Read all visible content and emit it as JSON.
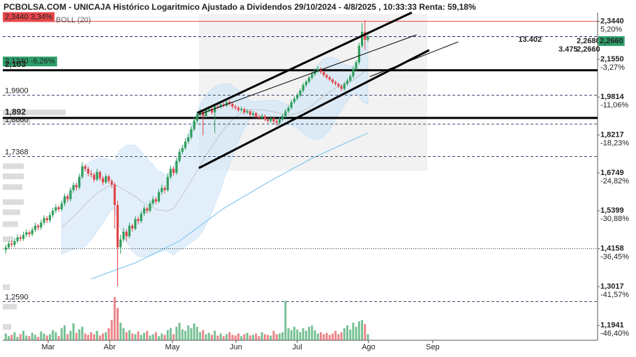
{
  "chart_data": {
    "type": "candlestick",
    "title": "PCBOLSA.COM - UNICAJA Histórico Logaritmico Ajustado a Dividendos 29/10/2024 - 4/8/2025 , 10:33:33 Renta: 59,18%",
    "indicator_label": "BOLL (20)",
    "log_scale": true,
    "ylim": [
      1.1555,
      2.39
    ],
    "xlim": [
      0,
      202
    ],
    "yticks": [
      {
        "value": 2.344,
        "label": "2,3440"
      },
      {
        "value": 2.155,
        "label": "2,1550"
      },
      {
        "value": 1.9814,
        "label": "1,9814"
      },
      {
        "value": 1.8217,
        "label": "1,8217"
      },
      {
        "value": 1.6749,
        "label": "1,6749"
      },
      {
        "value": 1.5399,
        "label": "1,5399"
      },
      {
        "value": 1.4158,
        "label": "1,4158"
      },
      {
        "value": 1.3017,
        "label": "1,3017"
      },
      {
        "value": 1.1941,
        "label": "1,1941"
      }
    ],
    "y_pct_labels": [
      "5,20%",
      "-3,27%",
      "-11,06%",
      "-18,23%",
      "-24,82%",
      "-30,88%",
      "-36,45%",
      "-41,57%",
      "-46,40%"
    ],
    "xticks": [
      {
        "value": 15.4,
        "label": "Mar"
      },
      {
        "value": 36.3,
        "label": "Abr"
      },
      {
        "value": 57.6,
        "label": "May"
      },
      {
        "value": 79.2,
        "label": "Jun"
      },
      {
        "value": 100,
        "label": "Jul"
      },
      {
        "value": 124.2,
        "label": "Ago"
      },
      {
        "value": 146,
        "label": "Sep"
      }
    ],
    "up_color": "#2e9e5b",
    "down_color": "#e0454a",
    "candles": [
      [
        1.412,
        1.428,
        1.4,
        1.42
      ],
      [
        1.42,
        1.44,
        1.414,
        1.432
      ],
      [
        1.432,
        1.442,
        1.42,
        1.428
      ],
      [
        1.428,
        1.45,
        1.42,
        1.44
      ],
      [
        1.44,
        1.462,
        1.432,
        1.452
      ],
      [
        1.452,
        1.46,
        1.438,
        1.447
      ],
      [
        1.447,
        1.47,
        1.44,
        1.46
      ],
      [
        1.46,
        1.478,
        1.452,
        1.468
      ],
      [
        1.468,
        1.474,
        1.452,
        1.462
      ],
      [
        1.462,
        1.486,
        1.455,
        1.476
      ],
      [
        1.476,
        1.5,
        1.468,
        1.49
      ],
      [
        1.49,
        1.496,
        1.474,
        1.484
      ],
      [
        1.484,
        1.51,
        1.476,
        1.5
      ],
      [
        1.5,
        1.525,
        1.492,
        1.515
      ],
      [
        1.515,
        1.522,
        1.498,
        1.508
      ],
      [
        1.508,
        1.535,
        1.5,
        1.525
      ],
      [
        1.525,
        1.55,
        1.516,
        1.54
      ],
      [
        1.54,
        1.562,
        1.532,
        1.552
      ],
      [
        1.552,
        1.558,
        1.536,
        1.545
      ],
      [
        1.545,
        1.575,
        1.538,
        1.565
      ],
      [
        1.565,
        1.6,
        1.556,
        1.59
      ],
      [
        1.59,
        1.598,
        1.57,
        1.58
      ],
      [
        1.58,
        1.622,
        1.572,
        1.612
      ],
      [
        1.612,
        1.64,
        1.602,
        1.63
      ],
      [
        1.63,
        1.638,
        1.61,
        1.622
      ],
      [
        1.622,
        1.672,
        1.615,
        1.66
      ],
      [
        1.66,
        1.715,
        1.652,
        1.7
      ],
      [
        1.7,
        1.708,
        1.68,
        1.69
      ],
      [
        1.69,
        1.698,
        1.662,
        1.672
      ],
      [
        1.672,
        1.685,
        1.658,
        1.668
      ],
      [
        1.668,
        1.676,
        1.64,
        1.65
      ],
      [
        1.65,
        1.69,
        1.644,
        1.678
      ],
      [
        1.678,
        1.684,
        1.646,
        1.655
      ],
      [
        1.655,
        1.664,
        1.63,
        1.64
      ],
      [
        1.64,
        1.672,
        1.634,
        1.662
      ],
      [
        1.662,
        1.668,
        1.636,
        1.645
      ],
      [
        1.645,
        1.652,
        1.62,
        1.632
      ],
      [
        1.632,
        1.64,
        1.48,
        1.56
      ],
      [
        1.56,
        1.575,
        1.302,
        1.42
      ],
      [
        1.42,
        1.46,
        1.4,
        1.445
      ],
      [
        1.445,
        1.482,
        1.436,
        1.47
      ],
      [
        1.47,
        1.478,
        1.44,
        1.455
      ],
      [
        1.455,
        1.5,
        1.448,
        1.49
      ],
      [
        1.49,
        1.496,
        1.47,
        1.48
      ],
      [
        1.48,
        1.522,
        1.474,
        1.512
      ],
      [
        1.512,
        1.52,
        1.494,
        1.505
      ],
      [
        1.505,
        1.54,
        1.498,
        1.53
      ],
      [
        1.53,
        1.558,
        1.522,
        1.548
      ],
      [
        1.548,
        1.554,
        1.53,
        1.54
      ],
      [
        1.54,
        1.575,
        1.534,
        1.565
      ],
      [
        1.565,
        1.59,
        1.556,
        1.58
      ],
      [
        1.58,
        1.588,
        1.562,
        1.572
      ],
      [
        1.572,
        1.615,
        1.566,
        1.605
      ],
      [
        1.605,
        1.632,
        1.596,
        1.62
      ],
      [
        1.62,
        1.628,
        1.6,
        1.612
      ],
      [
        1.612,
        1.672,
        1.606,
        1.66
      ],
      [
        1.66,
        1.702,
        1.652,
        1.69
      ],
      [
        1.69,
        1.698,
        1.664,
        1.675
      ],
      [
        1.675,
        1.732,
        1.668,
        1.72
      ],
      [
        1.72,
        1.768,
        1.712,
        1.755
      ],
      [
        1.755,
        1.782,
        1.746,
        1.77
      ],
      [
        1.77,
        1.808,
        1.762,
        1.795
      ],
      [
        1.795,
        1.825,
        1.786,
        1.812
      ],
      [
        1.812,
        1.858,
        1.804,
        1.845
      ],
      [
        1.845,
        1.894,
        1.836,
        1.88
      ],
      [
        1.88,
        1.918,
        1.87,
        1.905
      ],
      [
        1.905,
        1.93,
        1.896,
        1.918
      ],
      [
        1.918,
        1.926,
        1.82,
        1.9
      ],
      [
        1.9,
        1.936,
        1.892,
        1.925
      ],
      [
        1.925,
        1.942,
        1.916,
        1.93
      ],
      [
        1.93,
        1.938,
        1.906,
        1.915
      ],
      [
        1.915,
        1.952,
        1.83,
        1.942
      ],
      [
        1.942,
        1.95,
        1.928,
        1.938
      ],
      [
        1.938,
        1.962,
        1.93,
        1.95
      ],
      [
        1.95,
        1.958,
        1.936,
        1.945
      ],
      [
        1.945,
        1.972,
        1.938,
        1.96
      ],
      [
        1.96,
        1.968,
        1.942,
        1.952
      ],
      [
        1.952,
        1.96,
        1.93,
        1.94
      ],
      [
        1.94,
        1.948,
        1.926,
        1.935
      ],
      [
        1.935,
        1.942,
        1.916,
        1.925
      ],
      [
        1.925,
        1.94,
        1.918,
        1.93
      ],
      [
        1.93,
        1.936,
        1.906,
        1.915
      ],
      [
        1.915,
        1.93,
        1.908,
        1.92
      ],
      [
        1.92,
        1.926,
        1.896,
        1.905
      ],
      [
        1.905,
        1.922,
        1.898,
        1.912
      ],
      [
        1.912,
        1.918,
        1.89,
        1.898
      ],
      [
        1.898,
        1.906,
        1.884,
        1.892
      ],
      [
        1.892,
        1.91,
        1.885,
        1.9
      ],
      [
        1.9,
        1.906,
        1.878,
        1.886
      ],
      [
        1.886,
        1.894,
        1.87,
        1.88
      ],
      [
        1.88,
        1.9,
        1.872,
        1.89
      ],
      [
        1.89,
        1.896,
        1.868,
        1.878
      ],
      [
        1.878,
        1.886,
        1.86,
        1.872
      ],
      [
        1.872,
        1.895,
        1.864,
        1.885
      ],
      [
        1.885,
        1.91,
        1.878,
        1.9
      ],
      [
        1.9,
        1.93,
        1.892,
        1.92
      ],
      [
        1.92,
        1.945,
        1.912,
        1.935
      ],
      [
        1.935,
        1.97,
        1.928,
        1.96
      ],
      [
        1.96,
        1.985,
        1.952,
        1.975
      ],
      [
        1.975,
        2.0,
        1.966,
        1.99
      ],
      [
        1.99,
        2.02,
        1.982,
        2.01
      ],
      [
        2.01,
        2.045,
        2.002,
        2.035
      ],
      [
        2.035,
        2.06,
        2.026,
        2.05
      ],
      [
        2.05,
        2.078,
        2.042,
        2.068
      ],
      [
        2.068,
        2.095,
        2.06,
        2.085
      ],
      [
        2.085,
        2.11,
        2.076,
        2.1
      ],
      [
        2.1,
        2.122,
        2.09,
        2.11
      ],
      [
        2.11,
        2.116,
        2.086,
        2.095
      ],
      [
        2.095,
        2.102,
        2.072,
        2.08
      ],
      [
        2.08,
        2.088,
        2.062,
        2.07
      ],
      [
        2.07,
        2.078,
        2.052,
        2.06
      ],
      [
        2.06,
        2.066,
        2.04,
        2.048
      ],
      [
        2.048,
        2.056,
        2.032,
        2.04
      ],
      [
        2.04,
        2.046,
        2.022,
        2.03
      ],
      [
        2.03,
        2.038,
        2.008,
        2.018
      ],
      [
        2.018,
        2.05,
        2.01,
        2.04
      ],
      [
        2.04,
        2.065,
        2.032,
        2.055
      ],
      [
        2.055,
        2.085,
        2.046,
        2.075
      ],
      [
        2.075,
        2.12,
        2.066,
        2.11
      ],
      [
        2.11,
        2.15,
        2.1,
        2.14
      ],
      [
        2.14,
        2.235,
        2.13,
        2.22
      ],
      [
        2.22,
        2.335,
        2.21,
        2.29
      ],
      [
        2.29,
        2.35,
        2.2,
        2.25
      ],
      [
        2.25,
        2.29,
        2.24,
        2.266
      ]
    ],
    "volume": [
      10,
      6,
      8,
      12,
      5,
      9,
      14,
      7,
      6,
      11,
      8,
      5,
      13,
      10,
      7,
      9,
      15,
      12,
      6,
      18,
      22,
      9,
      14,
      25,
      11,
      16,
      20,
      10,
      8,
      12,
      9,
      14,
      7,
      10,
      12,
      18,
      30,
      64,
      48,
      26,
      18,
      12,
      15,
      10,
      9,
      13,
      8,
      11,
      14,
      7,
      9,
      12,
      6,
      10,
      8,
      15,
      18,
      9,
      20,
      26,
      16,
      14,
      22,
      18,
      25,
      20,
      12,
      15,
      9,
      11,
      8,
      14,
      7,
      10,
      6,
      9,
      12,
      8,
      7,
      10,
      6,
      9,
      11,
      7,
      8,
      10,
      6,
      12,
      9,
      8,
      7,
      14,
      9,
      10,
      12,
      58,
      18,
      15,
      20,
      16,
      12,
      18,
      14,
      20,
      22,
      15,
      10,
      12,
      9,
      11,
      8,
      10,
      14,
      9,
      12,
      18,
      22,
      16,
      26,
      20,
      28,
      30,
      24,
      9
    ],
    "ma_long": {
      "color": "#8ccbf0",
      "x": [
        30,
        45,
        60,
        75,
        90,
        105,
        124
      ],
      "values": [
        1.324,
        1.372,
        1.44,
        1.548,
        1.64,
        1.73,
        1.83
      ]
    },
    "volume_profile": {
      "color": "#dcdcdc",
      "prices": [
        1.915,
        1.882,
        1.7,
        1.662,
        1.623,
        1.57,
        1.535,
        1.495,
        1.446,
        1.3,
        1.245,
        1.19
      ],
      "sizes": [
        90,
        40,
        30,
        30,
        28,
        30,
        25,
        22,
        15,
        10,
        20,
        12
      ]
    },
    "levels": [
      {
        "value": 2.344,
        "label": "2,3440 3,34%",
        "style": "solid",
        "color": "#e8474b",
        "box": true
      },
      {
        "value": 2.266,
        "style": "dashed",
        "color": "#1f2a6b"
      },
      {
        "value": 2.124,
        "label": "2,1240 -6,26%",
        "style": "none",
        "color": "#2e9e6b",
        "box": true
      },
      {
        "value": 2.103,
        "label": "2,103",
        "style": "thick",
        "color": "#000000"
      },
      {
        "value": 1.99,
        "label": "1,9900",
        "style": "dashed",
        "color": "#3a4a6b"
      },
      {
        "value": 1.892,
        "label": "1,892",
        "style": "thick",
        "color": "#000000"
      },
      {
        "value": 1.866,
        "label": "1,8660",
        "style": "dashed",
        "color": "#3a4a6b"
      },
      {
        "value": 1.7368,
        "label": "1,7368",
        "style": "dashed",
        "color": "#3a4a6b"
      },
      {
        "value": 1.4158,
        "style": "dotted",
        "color": "#222222"
      },
      {
        "value": 1.259,
        "label": "1,2590",
        "style": "dashed",
        "color": "#3a4a6b"
      }
    ],
    "trendlines": [
      {
        "x": [
          66.1,
          138.9
        ],
        "values": [
          1.913,
          2.39
        ],
        "width": 3
      },
      {
        "x": [
          66.6,
          144.8
        ],
        "values": [
          1.693,
          2.199
        ],
        "width": 3
      },
      {
        "x": [
          66.1,
          140.5
        ],
        "values": [
          1.904,
          2.275
        ],
        "width": 1
      },
      {
        "x": [
          124.6,
          154.7
        ],
        "values": [
          2.073,
          2.24
        ],
        "width": 1
      }
    ],
    "price_tags": [
      {
        "text": "13.402",
        "color": "#333333"
      },
      {
        "text": "2,2680",
        "color": "#2e9e6b"
      },
      {
        "text": "2,2660",
        "color": "#2e9e6b",
        "box": true
      },
      {
        "text": "3.475",
        "color": "#222222"
      },
      {
        "text": "2,2660",
        "color": "#2f7fd0"
      }
    ]
  }
}
